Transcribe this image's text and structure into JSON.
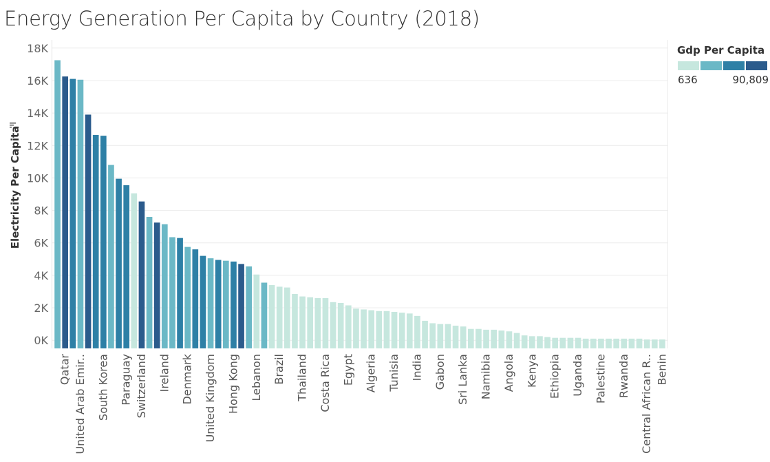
{
  "title": "Energy Generation Per Capita by Country (2018)",
  "legend": {
    "title": "Gdp Per Capita",
    "min_label": "636",
    "max_label": "90,809",
    "colors": [
      "#c6e7de",
      "#6bb8c6",
      "#2e80a6",
      "#2b5b8c"
    ]
  },
  "chart_data": {
    "type": "bar",
    "title": "Energy Generation Per Capita by Country (2018)",
    "xlabel": "",
    "ylabel": "Electricity Per Capita",
    "ylim": [
      -500,
      18500
    ],
    "yticks": [
      0,
      2000,
      4000,
      6000,
      8000,
      10000,
      12000,
      14000,
      16000,
      18000
    ],
    "ytick_labels": [
      "0K",
      "2K",
      "4K",
      "6K",
      "8K",
      "10K",
      "12K",
      "14K",
      "16K",
      "18K"
    ],
    "color_legend": "Gdp Per Capita",
    "categories": [
      "",
      "Qatar",
      "",
      "United Arab Emir..",
      "",
      "",
      "South Korea",
      "",
      "",
      "Paraguay",
      "",
      "Switzerland",
      "",
      "",
      "Ireland",
      "",
      "",
      "Denmark",
      "",
      "",
      "United Kingdom",
      "",
      "",
      "Hong Kong",
      "",
      "",
      "Lebanon",
      "",
      "",
      "Brazil",
      "",
      "",
      "Thailand",
      "",
      "",
      "Costa Rica",
      "",
      "",
      "Egypt",
      "",
      "",
      "Algeria",
      "",
      "",
      "Tunisia",
      "",
      "",
      "India",
      "",
      "",
      "Gabon",
      "",
      "",
      "Sri Lanka",
      "",
      "",
      "Namibia",
      "",
      "",
      "Angola",
      "",
      "",
      "Kenya",
      "",
      "",
      "Ethiopia",
      "",
      "",
      "Uganda",
      "",
      "",
      "Palestine",
      "",
      "",
      "Rwanda",
      "",
      "",
      "Central African R..",
      "",
      "Benin"
    ],
    "values": [
      17250,
      16250,
      16100,
      16050,
      13900,
      12650,
      12600,
      10800,
      9950,
      9550,
      9050,
      8550,
      7600,
      7250,
      7150,
      6350,
      6300,
      5750,
      5600,
      5200,
      5050,
      4950,
      4900,
      4850,
      4700,
      4550,
      4050,
      3550,
      3400,
      3300,
      3250,
      2850,
      2700,
      2650,
      2600,
      2600,
      2350,
      2300,
      2150,
      1950,
      1900,
      1850,
      1800,
      1800,
      1750,
      1700,
      1650,
      1500,
      1200,
      1050,
      1000,
      1000,
      900,
      850,
      700,
      700,
      650,
      650,
      600,
      550,
      450,
      300,
      250,
      250,
      200,
      150,
      150,
      150,
      150,
      100,
      100,
      100,
      100,
      100,
      100,
      100,
      100,
      50,
      50,
      50
    ],
    "color_levels": [
      2,
      4,
      3,
      2,
      4,
      3,
      3,
      2,
      3,
      3,
      1,
      4,
      2,
      4,
      2,
      2,
      3,
      2,
      3,
      3,
      2,
      3,
      2,
      3,
      4,
      2,
      1,
      2,
      1,
      1,
      1,
      1,
      1,
      1,
      1,
      1,
      1,
      1,
      1,
      1,
      1,
      1,
      1,
      1,
      1,
      1,
      1,
      1,
      1,
      1,
      1,
      1,
      1,
      1,
      1,
      1,
      1,
      1,
      1,
      1,
      1,
      1,
      1,
      1,
      1,
      1,
      1,
      1,
      1,
      1,
      1,
      1,
      1,
      1,
      1,
      1,
      1,
      1,
      1,
      1
    ]
  }
}
